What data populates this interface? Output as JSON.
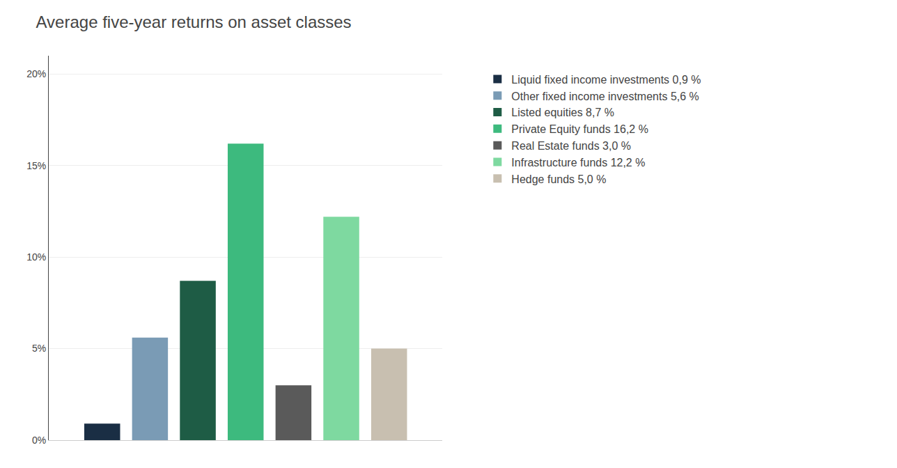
{
  "chart_data": {
    "type": "bar",
    "title": "Average five-year returns on asset classes",
    "categories": [
      null
    ],
    "series": [
      {
        "name": "Liquid fixed income investments 0,9 %",
        "color": "#1a2e44",
        "values": [
          0.9
        ]
      },
      {
        "name": "Other fixed income investments 5,6 %",
        "color": "#7a9bb5",
        "values": [
          5.6
        ]
      },
      {
        "name": "Listed equities 8,7 %",
        "color": "#1e5c45",
        "values": [
          8.7
        ]
      },
      {
        "name": "Private Equity funds 16,2 %",
        "color": "#3dba7e",
        "values": [
          16.2
        ]
      },
      {
        "name": "Real Estate funds 3,0 %",
        "color": "#5a5a5a",
        "values": [
          3.0
        ]
      },
      {
        "name": "Infrastructure funds 12,2 %",
        "color": "#7ed9a0",
        "values": [
          12.2
        ]
      },
      {
        "name": "Hedge funds 5,0 %",
        "color": "#c8bfb0",
        "values": [
          5.0
        ]
      }
    ],
    "ylim": [
      0,
      21
    ],
    "yticks": [
      {
        "value": 0,
        "label": "0%"
      },
      {
        "value": 5,
        "label": "5%"
      },
      {
        "value": 10,
        "label": "10%"
      },
      {
        "value": 15,
        "label": "15%"
      },
      {
        "value": 20,
        "label": "20%"
      }
    ],
    "grid": true,
    "tick_labels": "y"
  }
}
